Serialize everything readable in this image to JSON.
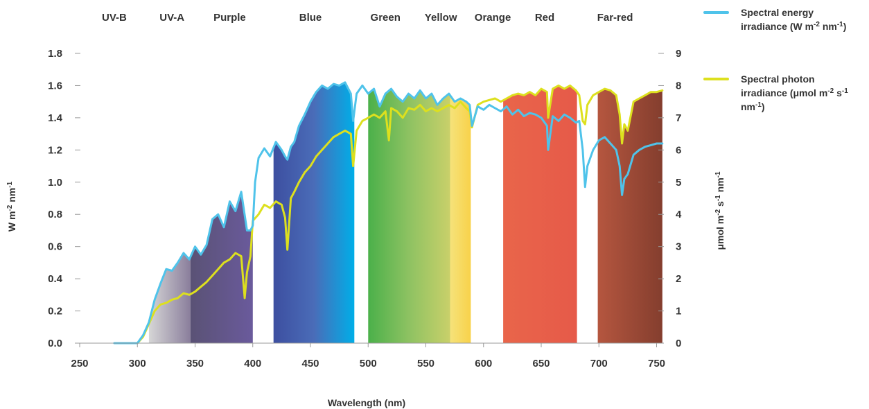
{
  "chart_data": {
    "type": "line",
    "xlabel": "Wavelength (nm)",
    "ylabel_left": "W m-2 nm-1",
    "ylabel_right": "μmol m-2 s-1 nm-1",
    "xlim": [
      250,
      755
    ],
    "ylim_left": [
      0,
      1.8
    ],
    "ylim_right": [
      0,
      9
    ],
    "x_ticks": [
      250,
      300,
      350,
      400,
      450,
      500,
      550,
      600,
      650,
      700,
      750
    ],
    "x_tick_labels": [
      "250",
      "300",
      "350",
      "400",
      "450",
      "500",
      "550",
      "600",
      "650",
      "700",
      "750"
    ],
    "y_left_ticks": [
      0,
      0.2,
      0.4,
      0.6,
      0.8,
      1.0,
      1.2,
      1.4,
      1.6,
      1.8
    ],
    "y_left_tick_labels": [
      "0.0",
      "0.2",
      "0.4",
      "0.6",
      "0.8",
      "1.0",
      "1.2",
      "1.4",
      "1.6",
      "1.8"
    ],
    "y_right_ticks": [
      0,
      1,
      2,
      3,
      4,
      5,
      6,
      7,
      8,
      9
    ],
    "y_right_tick_labels": [
      "0",
      "1",
      "2",
      "3",
      "4",
      "5",
      "6",
      "7",
      "8",
      "9"
    ],
    "grid": false,
    "legend_position": "top-right",
    "bands": [
      {
        "label": "UV-B",
        "label_x": 280,
        "from": 310,
        "to": 346,
        "colors": [
          "#d6d6d6",
          "#8a7e9c"
        ]
      },
      {
        "label": "UV-A",
        "label_x": 330,
        "from": 346,
        "to": 400,
        "colors": [
          "#5a5275",
          "#6a5a9c"
        ]
      },
      {
        "label": "Purple",
        "label_x": 380,
        "from": 400,
        "to": 400,
        "colors": [
          "#6a5a9c",
          "#6a5a9c"
        ]
      },
      {
        "label": "Blue",
        "label_x": 450,
        "from": 418,
        "to": 488,
        "colors": [
          "#3d4fa0",
          "#4a6cb8",
          "#00aee8"
        ]
      },
      {
        "label": "Green",
        "label_x": 515,
        "from": 500,
        "to": 571,
        "colors": [
          "#4bb04a",
          "#8ec262",
          "#c9d06a"
        ]
      },
      {
        "label": "Yellow",
        "label_x": 563,
        "from": 571,
        "to": 589,
        "colors": [
          "#f6e27a",
          "#f8d24a"
        ]
      },
      {
        "label": "Orange",
        "label_x": 608,
        "from": 589,
        "to": 589,
        "colors": [
          "#f6a040",
          "#f6a040"
        ]
      },
      {
        "label": "Red",
        "label_x": 653,
        "from": 617,
        "to": 681,
        "colors": [
          "#e9654a",
          "#e65a49"
        ]
      },
      {
        "label": "Far-red",
        "label_x": 714,
        "from": 699,
        "to": 755,
        "colors": [
          "#b5563f",
          "#843e2e"
        ]
      }
    ],
    "series": [
      {
        "name": "Spectral energy irradiance (W m-2 nm-1)",
        "axis": "left",
        "color": "#4fc3ea",
        "x": [
          280,
          290,
          300,
          305,
          310,
          315,
          320,
          325,
          330,
          335,
          340,
          345,
          350,
          355,
          360,
          365,
          370,
          375,
          380,
          385,
          390,
          395,
          398,
          400,
          402,
          405,
          410,
          415,
          420,
          425,
          428,
          430,
          433,
          436,
          440,
          445,
          450,
          455,
          460,
          465,
          470,
          475,
          480,
          485,
          487,
          490,
          495,
          500,
          505,
          510,
          515,
          520,
          525,
          530,
          535,
          540,
          545,
          550,
          555,
          560,
          565,
          570,
          575,
          580,
          585,
          588,
          590,
          595,
          600,
          605,
          610,
          615,
          620,
          625,
          630,
          635,
          640,
          645,
          650,
          655,
          656,
          660,
          665,
          670,
          675,
          680,
          683,
          686,
          688,
          690,
          695,
          700,
          705,
          710,
          715,
          718,
          720,
          722,
          725,
          730,
          735,
          740,
          745,
          750,
          755
        ],
        "y": [
          0.0,
          0.0,
          0.0,
          0.05,
          0.13,
          0.27,
          0.37,
          0.46,
          0.45,
          0.5,
          0.56,
          0.52,
          0.6,
          0.55,
          0.61,
          0.77,
          0.8,
          0.72,
          0.88,
          0.82,
          0.94,
          0.7,
          0.7,
          0.73,
          1.0,
          1.15,
          1.21,
          1.16,
          1.25,
          1.2,
          1.16,
          1.14,
          1.22,
          1.25,
          1.35,
          1.42,
          1.5,
          1.56,
          1.6,
          1.58,
          1.61,
          1.6,
          1.62,
          1.55,
          1.38,
          1.55,
          1.6,
          1.55,
          1.58,
          1.47,
          1.55,
          1.58,
          1.53,
          1.5,
          1.55,
          1.52,
          1.57,
          1.52,
          1.55,
          1.48,
          1.52,
          1.55,
          1.5,
          1.52,
          1.5,
          1.48,
          1.35,
          1.47,
          1.45,
          1.48,
          1.46,
          1.44,
          1.47,
          1.42,
          1.45,
          1.41,
          1.43,
          1.42,
          1.4,
          1.35,
          1.2,
          1.41,
          1.38,
          1.42,
          1.4,
          1.37,
          1.38,
          1.2,
          0.97,
          1.1,
          1.2,
          1.26,
          1.28,
          1.24,
          1.2,
          1.1,
          0.92,
          1.02,
          1.05,
          1.17,
          1.2,
          1.22,
          1.23,
          1.24,
          1.24
        ]
      },
      {
        "name": "Spectral photon irradiance (μmol m-2 s-1 nm-1)",
        "axis": "right",
        "color": "#dde01e",
        "x": [
          290,
          300,
          305,
          310,
          315,
          320,
          325,
          330,
          335,
          340,
          345,
          350,
          355,
          360,
          365,
          370,
          375,
          380,
          385,
          390,
          393,
          395,
          398,
          400,
          405,
          410,
          415,
          420,
          425,
          428,
          430,
          433,
          436,
          440,
          445,
          450,
          455,
          460,
          465,
          470,
          475,
          480,
          485,
          487,
          490,
          495,
          500,
          505,
          510,
          515,
          518,
          520,
          525,
          530,
          535,
          540,
          545,
          550,
          555,
          560,
          565,
          570,
          575,
          580,
          585,
          588,
          590,
          595,
          600,
          605,
          610,
          615,
          620,
          625,
          630,
          635,
          640,
          645,
          650,
          655,
          656,
          660,
          665,
          670,
          675,
          680,
          683,
          686,
          688,
          690,
          695,
          700,
          705,
          710,
          715,
          718,
          720,
          722,
          725,
          730,
          735,
          740,
          745,
          750,
          755
        ],
        "y": [
          0.0,
          0.0,
          0.2,
          0.6,
          1.0,
          1.2,
          1.25,
          1.35,
          1.4,
          1.55,
          1.5,
          1.6,
          1.75,
          1.9,
          2.1,
          2.3,
          2.5,
          2.6,
          2.8,
          2.7,
          1.4,
          2.2,
          2.7,
          3.8,
          4.0,
          4.3,
          4.2,
          4.4,
          4.3,
          3.9,
          2.9,
          4.5,
          4.7,
          5.0,
          5.3,
          5.5,
          5.8,
          6.0,
          6.2,
          6.4,
          6.5,
          6.6,
          6.5,
          5.5,
          6.6,
          6.9,
          7.0,
          7.1,
          7.0,
          7.2,
          6.3,
          7.3,
          7.2,
          7.0,
          7.3,
          7.25,
          7.4,
          7.2,
          7.3,
          7.2,
          7.3,
          7.4,
          7.3,
          7.5,
          7.3,
          7.2,
          6.7,
          7.4,
          7.5,
          7.55,
          7.6,
          7.5,
          7.6,
          7.7,
          7.75,
          7.7,
          7.8,
          7.7,
          7.9,
          7.8,
          7.0,
          7.9,
          8.0,
          7.9,
          8.0,
          7.85,
          7.7,
          6.9,
          6.8,
          7.4,
          7.7,
          7.8,
          7.9,
          7.85,
          7.7,
          7.1,
          6.2,
          6.8,
          6.6,
          7.5,
          7.6,
          7.7,
          7.8,
          7.8,
          7.85
        ]
      }
    ]
  },
  "legend": [
    {
      "lines": [
        "Spectral energy",
        "irradiance (W m-2 nm-1)"
      ],
      "color": "#4fc3ea"
    },
    {
      "lines": [
        "Spectral photon",
        "irradiance (μmol m-2 s-1",
        "nm-1)"
      ],
      "color": "#dde01e"
    }
  ]
}
